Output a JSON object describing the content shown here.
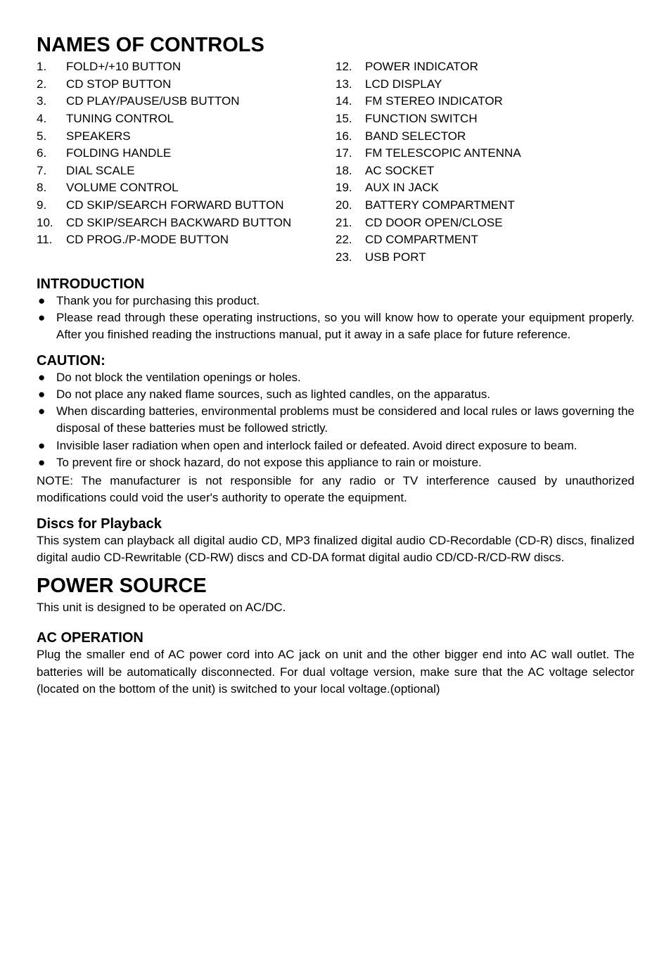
{
  "headings": {
    "main": "NAMES OF CONTROLS",
    "intro": "INTRODUCTION",
    "caution": "CAUTION:",
    "discs": "Discs for Playback",
    "power": "POWER SOURCE",
    "ac": "AC OPERATION"
  },
  "controls_left": [
    {
      "n": "1.",
      "t": "FOLD+/+10 BUTTON"
    },
    {
      "n": "2.",
      "t": "CD STOP BUTTON"
    },
    {
      "n": "3.",
      "t": "CD PLAY/PAUSE/USB BUTTON"
    },
    {
      "n": "4.",
      "t": "TUNING CONTROL"
    },
    {
      "n": "5.",
      "t": "SPEAKERS"
    },
    {
      "n": "6.",
      "t": "FOLDING HANDLE"
    },
    {
      "n": "7.",
      "t": "DIAL SCALE"
    },
    {
      "n": "8.",
      "t": "VOLUME CONTROL"
    },
    {
      "n": "9.",
      "t": "CD SKIP/SEARCH FORWARD BUTTON"
    },
    {
      "n": "10.",
      "t": "CD SKIP/SEARCH BACKWARD BUTTON"
    },
    {
      "n": "11.",
      "t": "CD PROG./P-MODE BUTTON"
    }
  ],
  "controls_right": [
    {
      "n": "12.",
      "t": "POWER INDICATOR"
    },
    {
      "n": "13.",
      "t": "LCD DISPLAY"
    },
    {
      "n": "14.",
      "t": "FM STEREO INDICATOR"
    },
    {
      "n": "15.",
      "t": "FUNCTION SWITCH"
    },
    {
      "n": "16.",
      "t": "BAND SELECTOR"
    },
    {
      "n": "17.",
      "t": "FM TELESCOPIC ANTENNA"
    },
    {
      "n": "18.",
      "t": "AC SOCKET"
    },
    {
      "n": "19.",
      "t": "AUX IN JACK"
    },
    {
      "n": "20.",
      "t": "BATTERY COMPARTMENT"
    },
    {
      "n": "21.",
      "t": "CD DOOR OPEN/CLOSE"
    },
    {
      "n": "22.",
      "t": "CD COMPARTMENT"
    },
    {
      "n": "23.",
      "t": "USB PORT"
    }
  ],
  "intro_bullets": [
    "Thank you for purchasing this product.",
    "Please read through these operating instructions, so you will know how to operate your equipment properly. After you finished reading the instructions manual, put it away in a safe place for future reference."
  ],
  "caution_bullets": [
    "Do not block the ventilation openings or holes.",
    "Do not place any naked flame sources, such as lighted candles, on the apparatus.",
    "When discarding batteries, environmental problems must be considered and local rules or laws governing the disposal of these batteries must be followed strictly.",
    "Invisible laser radiation when open and interlock failed or defeated. Avoid direct exposure to beam.",
    "To prevent fire or shock hazard, do not expose this appliance to rain or moisture."
  ],
  "paras": {
    "note": "NOTE: The manufacturer is not responsible for any radio or TV interference caused by unauthorized modifications could void the user's authority to operate the equipment.",
    "discs": "This system can playback all digital audio CD, MP3 finalized digital audio CD-Recordable (CD-R) discs, finalized digital audio CD-Rewritable (CD-RW) discs and CD-DA format digital audio CD/CD-R/CD-RW discs.",
    "power": "This unit is designed to be operated on AC/DC.",
    "ac": "Plug the smaller end of AC power cord into AC jack on unit and the other bigger end into AC wall outlet. The batteries will be automatically disconnected. For dual voltage version, make sure that the AC voltage selector (located on the bottom of the unit) is switched to your local voltage.(optional)"
  }
}
